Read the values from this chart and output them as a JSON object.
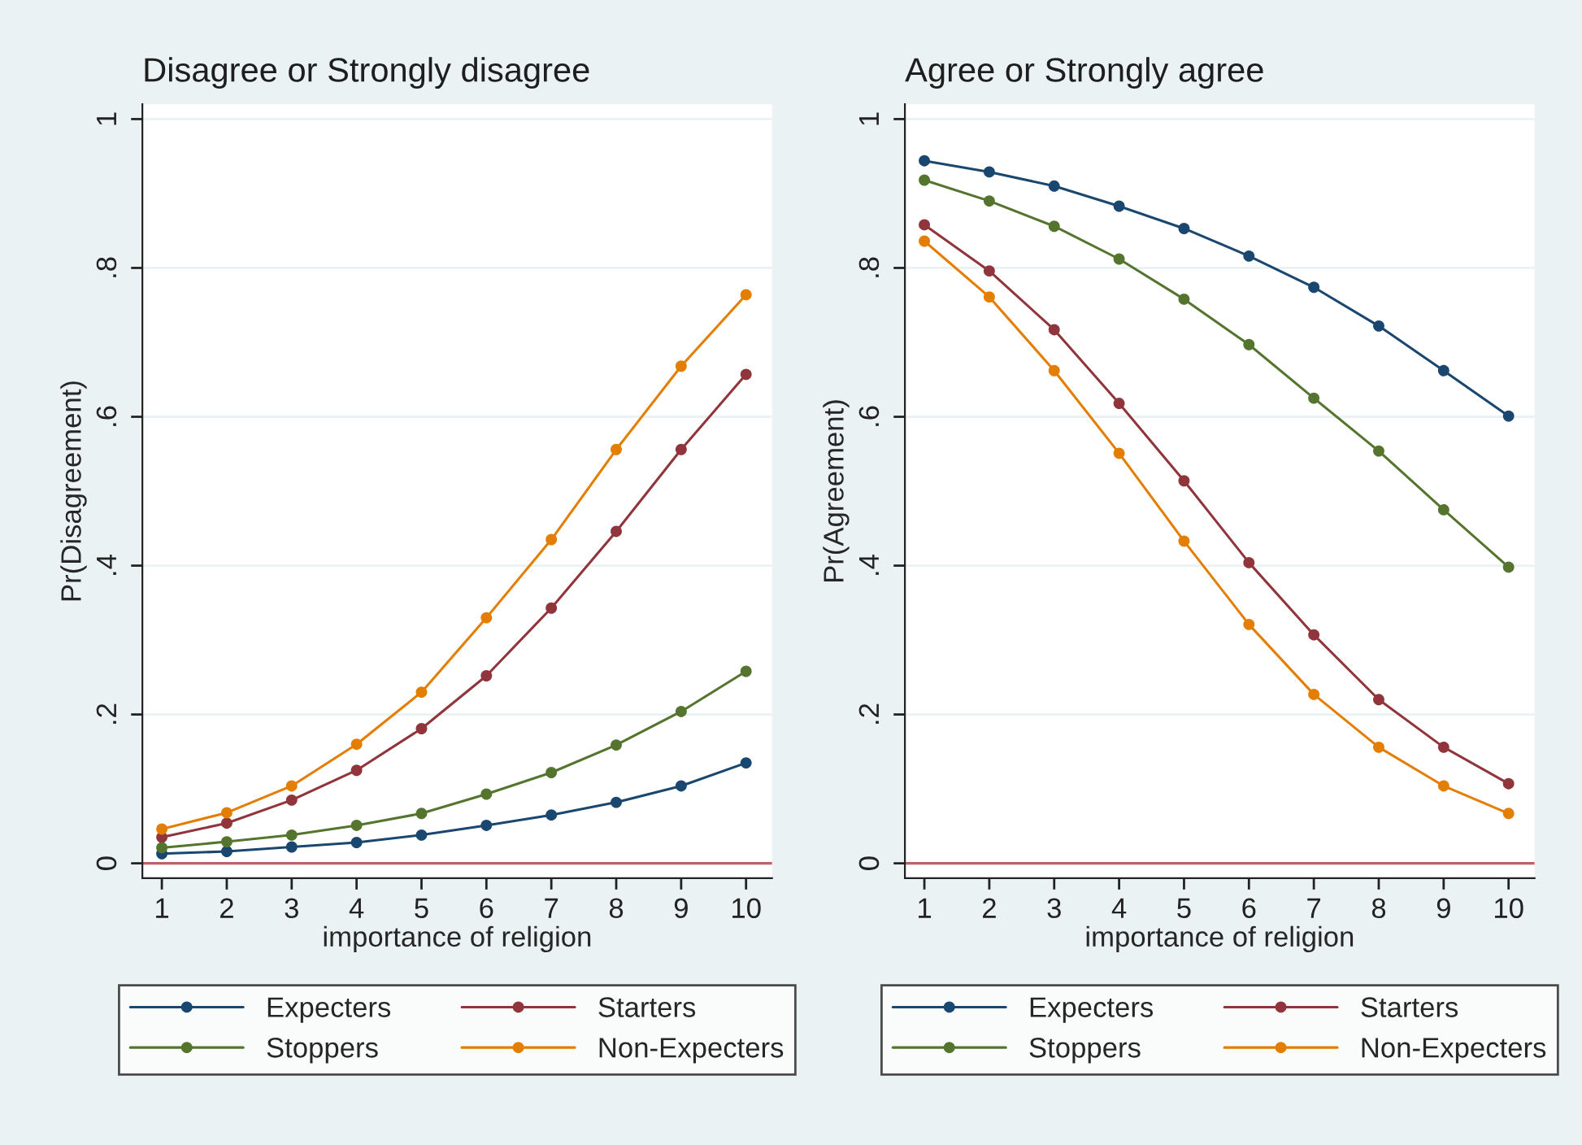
{
  "chart_data": [
    {
      "type": "line",
      "title": "Disagree or Strongly disagree",
      "xlabel": "importance of religion",
      "ylabel": "Pr(Disagreement)",
      "x": [
        1,
        2,
        3,
        4,
        5,
        6,
        7,
        8,
        9,
        10
      ],
      "series": [
        {
          "name": "Expecters",
          "color": "#1a476f",
          "values": [
            0.013,
            0.016,
            0.022,
            0.028,
            0.038,
            0.051,
            0.065,
            0.082,
            0.104,
            0.135
          ]
        },
        {
          "name": "Starters",
          "color": "#90353b",
          "values": [
            0.035,
            0.054,
            0.085,
            0.125,
            0.181,
            0.252,
            0.343,
            0.446,
            0.556,
            0.657
          ]
        },
        {
          "name": "Stoppers",
          "color": "#55752f",
          "values": [
            0.021,
            0.029,
            0.038,
            0.051,
            0.067,
            0.093,
            0.122,
            0.159,
            0.204,
            0.258
          ]
        },
        {
          "name": "Non-Expecters",
          "color": "#e37e00",
          "values": [
            0.046,
            0.068,
            0.104,
            0.16,
            0.23,
            0.33,
            0.435,
            0.556,
            0.668,
            0.764
          ]
        }
      ],
      "xlim": [
        0.7,
        10.4
      ],
      "xticks": [
        1,
        2,
        3,
        4,
        5,
        6,
        7,
        8,
        9,
        10
      ],
      "ylim": [
        -0.02,
        1.02
      ],
      "yticks": [
        0,
        {
          "value": 0.2,
          "label": ".2"
        },
        {
          "value": 0.4,
          "label": ".4"
        },
        {
          "value": 0.6,
          "label": ".6"
        },
        {
          "value": 0.8,
          "label": ".8"
        },
        1
      ],
      "ref_lines": [
        {
          "axis": "y",
          "value": 0,
          "color": "#c0606a"
        }
      ],
      "grid": "y",
      "legend": "bottom",
      "marker": "circle",
      "line_style": "solid"
    },
    {
      "type": "line",
      "title": "Agree or Strongly agree",
      "xlabel": "importance of religion",
      "ylabel": "Pr(Agreement)",
      "x": [
        1,
        2,
        3,
        4,
        5,
        6,
        7,
        8,
        9,
        10
      ],
      "series": [
        {
          "name": "Expecters",
          "color": "#1a476f",
          "values": [
            0.944,
            0.929,
            0.91,
            0.883,
            0.853,
            0.816,
            0.774,
            0.722,
            0.662,
            0.601
          ]
        },
        {
          "name": "Starters",
          "color": "#90353b",
          "values": [
            0.858,
            0.796,
            0.717,
            0.618,
            0.514,
            0.404,
            0.307,
            0.22,
            0.156,
            0.107
          ]
        },
        {
          "name": "Stoppers",
          "color": "#55752f",
          "values": [
            0.918,
            0.89,
            0.856,
            0.812,
            0.758,
            0.697,
            0.625,
            0.554,
            0.475,
            0.398
          ]
        },
        {
          "name": "Non-Expecters",
          "color": "#e37e00",
          "values": [
            0.836,
            0.761,
            0.662,
            0.551,
            0.433,
            0.321,
            0.227,
            0.156,
            0.104,
            0.067
          ]
        }
      ],
      "xlim": [
        0.7,
        10.4
      ],
      "xticks": [
        1,
        2,
        3,
        4,
        5,
        6,
        7,
        8,
        9,
        10
      ],
      "ylim": [
        -0.02,
        1.02
      ],
      "yticks": [
        0,
        {
          "value": 0.2,
          "label": ".2"
        },
        {
          "value": 0.4,
          "label": ".4"
        },
        {
          "value": 0.6,
          "label": ".6"
        },
        {
          "value": 0.8,
          "label": ".8"
        },
        1
      ],
      "ref_lines": [
        {
          "axis": "y",
          "value": 0,
          "color": "#c0606a"
        }
      ],
      "grid": "y",
      "legend": "bottom",
      "marker": "circle",
      "line_style": "solid"
    }
  ]
}
